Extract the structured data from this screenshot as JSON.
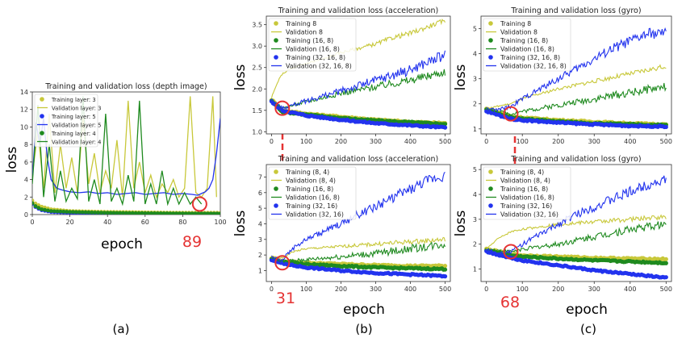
{
  "colors": {
    "yellow": "#c8c83a",
    "green": "#1f8a1f",
    "blue": "#2233ee",
    "red": "#e53333",
    "frame": "#333333"
  },
  "labels": {
    "loss": "loss",
    "epoch": "epoch",
    "sub_a": "(a)",
    "sub_b": "(b)",
    "sub_c": "(c)",
    "ann_a": "89",
    "ann_b": "31",
    "ann_c": "68"
  },
  "chart_data": [
    {
      "id": "a",
      "type": "line",
      "title": "Training and validation loss (depth image)",
      "xlim": [
        0,
        100
      ],
      "ylim": [
        0,
        14
      ],
      "xticks": [
        0,
        20,
        40,
        60,
        80,
        100
      ],
      "yticks": [
        0,
        2,
        4,
        6,
        8,
        10,
        12,
        14
      ],
      "legend": [
        "Training layer: 3",
        "Validation layer: 3",
        "Training layer: 5",
        "Validation layer: 5",
        "Training layer: 4",
        "Validation layer: 4"
      ],
      "legend_position": "top-left",
      "highlight": {
        "x": 89,
        "y": 1.2
      },
      "series": [
        {
          "name": "Training layer: 3",
          "kind": "train",
          "color": "yellow",
          "x": [
            0,
            2,
            5,
            10,
            15,
            20,
            30,
            40,
            50,
            60,
            70,
            80,
            90,
            100
          ],
          "y": [
            1.6,
            1.2,
            0.9,
            0.6,
            0.5,
            0.4,
            0.35,
            0.3,
            0.28,
            0.25,
            0.22,
            0.2,
            0.2,
            0.2
          ]
        },
        {
          "name": "Validation layer: 3",
          "kind": "val",
          "color": "yellow",
          "x": [
            0,
            3,
            6,
            9,
            12,
            15,
            18,
            21,
            24,
            27,
            30,
            33,
            36,
            39,
            42,
            45,
            48,
            51,
            54,
            57,
            60,
            63,
            66,
            69,
            72,
            75,
            78,
            81,
            84,
            87,
            90,
            93,
            96,
            98
          ],
          "y": [
            4.5,
            9.5,
            3.0,
            11.5,
            2.5,
            8.0,
            3.0,
            6.5,
            2.5,
            11.0,
            3.5,
            7.0,
            2.5,
            5.0,
            3.0,
            8.5,
            2.0,
            13.0,
            3.0,
            6.0,
            2.5,
            4.5,
            2.0,
            3.5,
            2.5,
            4.0,
            2.0,
            3.0,
            13.5,
            2.5,
            2.0,
            3.0,
            13.5,
            2.0
          ]
        },
        {
          "name": "Training layer: 5",
          "kind": "train",
          "color": "blue",
          "x": [
            0,
            2,
            5,
            10,
            20,
            40,
            60,
            80,
            100
          ],
          "y": [
            1.2,
            0.8,
            0.5,
            0.3,
            0.2,
            0.15,
            0.12,
            0.1,
            0.1
          ]
        },
        {
          "name": "Validation layer: 5",
          "kind": "val",
          "color": "blue",
          "x": [
            0,
            2,
            4,
            6,
            8,
            10,
            13,
            16,
            20,
            25,
            30,
            35,
            40,
            45,
            50,
            55,
            60,
            65,
            70,
            75,
            80,
            85,
            88,
            90,
            92,
            94,
            96,
            98,
            100
          ],
          "y": [
            4.0,
            10.5,
            8.0,
            11.0,
            6.5,
            4.0,
            3.0,
            2.8,
            2.6,
            2.5,
            2.6,
            2.4,
            2.5,
            2.3,
            2.4,
            2.5,
            2.3,
            2.4,
            2.5,
            2.3,
            2.4,
            2.3,
            2.2,
            2.4,
            2.6,
            3.0,
            4.0,
            7.0,
            11.0
          ]
        },
        {
          "name": "Training layer: 4",
          "kind": "train",
          "color": "green",
          "x": [
            0,
            2,
            5,
            10,
            20,
            40,
            60,
            80,
            100
          ],
          "y": [
            1.3,
            0.9,
            0.6,
            0.4,
            0.3,
            0.2,
            0.15,
            0.12,
            0.1
          ]
        },
        {
          "name": "Validation layer: 4",
          "kind": "val",
          "color": "green",
          "x": [
            0,
            3,
            6,
            9,
            12,
            15,
            18,
            21,
            24,
            27,
            30,
            33,
            36,
            39,
            42,
            45,
            48,
            51,
            54,
            57,
            60,
            63,
            66,
            69,
            72,
            75,
            78,
            81,
            84,
            87,
            90
          ],
          "y": [
            3.5,
            12.5,
            2.0,
            8.0,
            1.5,
            5.0,
            1.5,
            3.0,
            1.8,
            13.5,
            1.5,
            4.0,
            1.2,
            11.5,
            1.5,
            3.0,
            1.2,
            4.5,
            1.5,
            13.0,
            1.2,
            3.5,
            1.2,
            5.0,
            1.2,
            3.0,
            1.2,
            2.5,
            1.2,
            2.0,
            1.2
          ]
        }
      ]
    },
    {
      "id": "b-top",
      "type": "line",
      "title": "Training and validation loss (acceleration)",
      "xlim": [
        -15,
        515
      ],
      "ylim": [
        0.95,
        3.7
      ],
      "xticks": [
        0,
        100,
        200,
        300,
        400,
        500
      ],
      "yticks": [
        1.0,
        1.5,
        2.0,
        2.5,
        3.0,
        3.5
      ],
      "legend": [
        "Training 8",
        "Validation 8",
        "Training (16, 8)",
        "Validation (16, 8)",
        "Training (32, 16, 8)",
        "Validation (32, 16, 8)"
      ],
      "legend_position": "top-left",
      "highlight": {
        "x": 31,
        "y": 1.55
      },
      "series": [
        {
          "name": "Training 8",
          "kind": "train",
          "color": "yellow",
          "x": [
            0,
            31,
            100,
            200,
            300,
            400,
            500
          ],
          "y": [
            1.75,
            1.5,
            1.42,
            1.35,
            1.28,
            1.23,
            1.2
          ]
        },
        {
          "name": "Validation 8",
          "kind": "val",
          "color": "yellow",
          "x": [
            0,
            10,
            20,
            31,
            50,
            100,
            150,
            200,
            250,
            300,
            350,
            400,
            450,
            500
          ],
          "y": [
            1.8,
            2.0,
            2.2,
            2.35,
            2.45,
            2.6,
            2.7,
            2.85,
            2.95,
            3.05,
            3.2,
            3.3,
            3.45,
            3.6
          ]
        },
        {
          "name": "Training (16, 8)",
          "kind": "train",
          "color": "green",
          "x": [
            0,
            31,
            100,
            200,
            300,
            400,
            500
          ],
          "y": [
            1.72,
            1.47,
            1.4,
            1.32,
            1.26,
            1.22,
            1.18
          ]
        },
        {
          "name": "Validation (16, 8)",
          "kind": "val",
          "color": "green",
          "x": [
            0,
            31,
            100,
            200,
            300,
            400,
            500
          ],
          "y": [
            1.75,
            1.55,
            1.7,
            1.9,
            2.05,
            2.2,
            2.4
          ]
        },
        {
          "name": "Training (32, 16, 8)",
          "kind": "train",
          "color": "blue",
          "x": [
            0,
            31,
            100,
            200,
            300,
            400,
            500
          ],
          "y": [
            1.7,
            1.5,
            1.38,
            1.28,
            1.2,
            1.15,
            1.1
          ]
        },
        {
          "name": "Validation (32, 16, 8)",
          "kind": "val",
          "color": "blue",
          "x": [
            0,
            31,
            100,
            200,
            300,
            400,
            500
          ],
          "y": [
            1.75,
            1.55,
            1.72,
            1.95,
            2.2,
            2.45,
            2.8
          ]
        }
      ]
    },
    {
      "id": "b-bottom",
      "type": "line",
      "title": "Training and validation loss (acceleration)",
      "xlim": [
        -15,
        515
      ],
      "ylim": [
        0.3,
        7.8
      ],
      "xticks": [
        0,
        100,
        200,
        300,
        400,
        500
      ],
      "yticks": [
        1,
        2,
        3,
        4,
        5,
        6,
        7
      ],
      "legend": [
        "Training (8, 4)",
        "Validation (8, 4)",
        "Training (16, 8)",
        "Validation (16, 8)",
        "Training (32, 16)",
        "Validation (32, 16)"
      ],
      "legend_position": "top-left",
      "highlight": {
        "x": 31,
        "y": 1.5
      },
      "series": [
        {
          "name": "Training (8, 4)",
          "kind": "train",
          "color": "yellow",
          "x": [
            0,
            31,
            100,
            200,
            300,
            400,
            500
          ],
          "y": [
            1.8,
            1.6,
            1.5,
            1.42,
            1.35,
            1.3,
            1.3
          ]
        },
        {
          "name": "Validation (8, 4)",
          "kind": "val",
          "color": "yellow",
          "x": [
            0,
            31,
            60,
            100,
            200,
            300,
            400,
            500
          ],
          "y": [
            1.9,
            1.8,
            2.2,
            2.4,
            2.55,
            2.7,
            2.85,
            3.0
          ]
        },
        {
          "name": "Training (16, 8)",
          "kind": "train",
          "color": "green",
          "x": [
            0,
            31,
            100,
            200,
            300,
            400,
            500
          ],
          "y": [
            1.75,
            1.55,
            1.4,
            1.3,
            1.2,
            1.15,
            1.1
          ]
        },
        {
          "name": "Validation (16, 8)",
          "kind": "val",
          "color": "green",
          "x": [
            0,
            31,
            100,
            200,
            300,
            400,
            500
          ],
          "y": [
            1.8,
            1.6,
            1.7,
            1.9,
            2.1,
            2.4,
            2.7
          ]
        },
        {
          "name": "Training (32, 16)",
          "kind": "train",
          "color": "blue",
          "x": [
            0,
            31,
            100,
            200,
            300,
            400,
            500
          ],
          "y": [
            1.7,
            1.45,
            1.2,
            1.0,
            0.85,
            0.75,
            0.65
          ]
        },
        {
          "name": "Validation (32, 16)",
          "kind": "val",
          "color": "blue",
          "x": [
            0,
            31,
            60,
            100,
            150,
            200,
            250,
            300,
            350,
            400,
            450,
            500
          ],
          "y": [
            1.9,
            1.7,
            2.4,
            3.0,
            3.5,
            4.0,
            4.6,
            5.1,
            5.7,
            6.2,
            6.8,
            7.1
          ]
        }
      ]
    },
    {
      "id": "c-top",
      "type": "line",
      "title": "Training and validation loss (gyro)",
      "xlim": [
        -15,
        515
      ],
      "ylim": [
        0.8,
        5.5
      ],
      "xticks": [
        0,
        100,
        200,
        300,
        400,
        500
      ],
      "yticks": [
        1,
        2,
        3,
        4,
        5
      ],
      "legend": [
        "Training 8",
        "Validation 8",
        "Training (16, 8)",
        "Validation (16, 8)",
        "Training (32, 16, 8)",
        "Validation (32, 16, 8)"
      ],
      "legend_position": "top-left",
      "highlight": {
        "x": 68,
        "y": 1.6
      },
      "series": [
        {
          "name": "Training 8",
          "kind": "train",
          "color": "yellow",
          "x": [
            0,
            68,
            100,
            200,
            300,
            400,
            500
          ],
          "y": [
            1.8,
            1.5,
            1.45,
            1.35,
            1.28,
            1.22,
            1.18
          ]
        },
        {
          "name": "Validation 8",
          "kind": "val",
          "color": "yellow",
          "x": [
            0,
            30,
            68,
            100,
            150,
            200,
            300,
            400,
            500
          ],
          "y": [
            1.8,
            1.9,
            2.0,
            2.2,
            2.4,
            2.6,
            2.9,
            3.2,
            3.5
          ]
        },
        {
          "name": "Training (16, 8)",
          "kind": "train",
          "color": "green",
          "x": [
            0,
            68,
            100,
            200,
            300,
            400,
            500
          ],
          "y": [
            1.75,
            1.45,
            1.4,
            1.3,
            1.22,
            1.18,
            1.15
          ]
        },
        {
          "name": "Validation (16, 8)",
          "kind": "val",
          "color": "green",
          "x": [
            0,
            68,
            100,
            200,
            300,
            400,
            500
          ],
          "y": [
            1.8,
            1.6,
            1.7,
            1.95,
            2.2,
            2.45,
            2.7
          ]
        },
        {
          "name": "Training (32, 16, 8)",
          "kind": "train",
          "color": "blue",
          "x": [
            0,
            68,
            100,
            200,
            300,
            400,
            500
          ],
          "y": [
            1.7,
            1.4,
            1.35,
            1.25,
            1.18,
            1.12,
            1.1
          ]
        },
        {
          "name": "Validation (32, 16, 8)",
          "kind": "val",
          "color": "blue",
          "x": [
            0,
            30,
            68,
            100,
            150,
            200,
            250,
            300,
            350,
            400,
            450,
            500
          ],
          "y": [
            1.8,
            1.75,
            1.9,
            2.2,
            2.6,
            3.0,
            3.4,
            3.8,
            4.2,
            4.5,
            4.8,
            4.8
          ]
        }
      ]
    },
    {
      "id": "c-bottom",
      "type": "line",
      "title": "Training and validation loss (gyro)",
      "xlim": [
        -15,
        515
      ],
      "ylim": [
        0.5,
        5.2
      ],
      "xticks": [
        0,
        100,
        200,
        300,
        400,
        500
      ],
      "yticks": [
        1,
        2,
        3,
        4,
        5
      ],
      "legend": [
        "Training (8, 4)",
        "Validation (8, 4)",
        "Training (16, 8)",
        "Validation (16, 8)",
        "Training (32, 16)",
        "Validation (32, 16)"
      ],
      "legend_position": "top-left",
      "highlight": {
        "x": 68,
        "y": 1.7
      },
      "series": [
        {
          "name": "Training (8, 4)",
          "kind": "train",
          "color": "yellow",
          "x": [
            0,
            68,
            100,
            200,
            300,
            400,
            500
          ],
          "y": [
            1.8,
            1.6,
            1.55,
            1.5,
            1.45,
            1.42,
            1.4
          ]
        },
        {
          "name": "Validation (8, 4)",
          "kind": "val",
          "color": "yellow",
          "x": [
            0,
            30,
            68,
            100,
            150,
            200,
            300,
            400,
            500
          ],
          "y": [
            1.8,
            2.2,
            2.5,
            2.6,
            2.7,
            2.8,
            2.9,
            3.0,
            3.1
          ]
        },
        {
          "name": "Training (16, 8)",
          "kind": "train",
          "color": "green",
          "x": [
            0,
            68,
            100,
            200,
            300,
            400,
            500
          ],
          "y": [
            1.75,
            1.55,
            1.5,
            1.42,
            1.35,
            1.3,
            1.25
          ]
        },
        {
          "name": "Validation (16, 8)",
          "kind": "val",
          "color": "green",
          "x": [
            0,
            68,
            100,
            200,
            300,
            400,
            500
          ],
          "y": [
            1.8,
            1.7,
            1.8,
            2.0,
            2.3,
            2.6,
            2.8
          ]
        },
        {
          "name": "Training (32, 16)",
          "kind": "train",
          "color": "blue",
          "x": [
            0,
            68,
            100,
            200,
            300,
            400,
            500
          ],
          "y": [
            1.7,
            1.45,
            1.35,
            1.15,
            0.95,
            0.8,
            0.65
          ]
        },
        {
          "name": "Validation (32, 16)",
          "kind": "val",
          "color": "blue",
          "x": [
            0,
            30,
            68,
            100,
            150,
            200,
            250,
            300,
            350,
            400,
            450,
            500
          ],
          "y": [
            1.8,
            1.65,
            1.7,
            2.0,
            2.4,
            2.8,
            3.2,
            3.5,
            3.8,
            4.1,
            4.4,
            4.6
          ]
        }
      ]
    }
  ]
}
